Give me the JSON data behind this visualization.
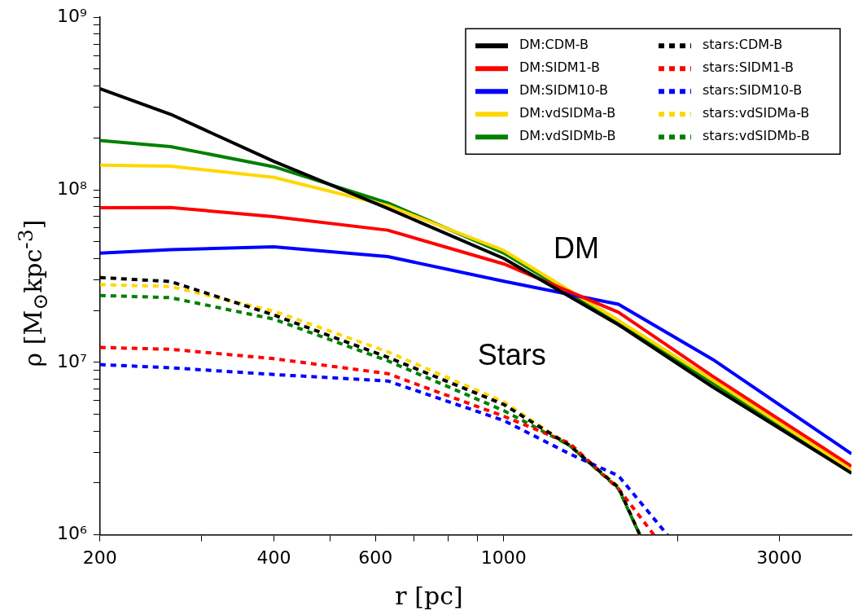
{
  "chart_data": {
    "type": "line",
    "xlabel": "r [pc]",
    "ylabel": "ρ [M$_{⊙}$kpc$^{-3}$]",
    "log": "xy",
    "xlim": [
      200,
      4000
    ],
    "ylim": [
      1000000,
      1000000000
    ],
    "xticks": [
      200,
      {
        "value": 300,
        "label": null
      },
      400,
      {
        "value": 500,
        "label": null
      },
      600,
      {
        "value": 700,
        "label": null
      },
      {
        "value": 800,
        "label": null
      },
      {
        "value": 900,
        "label": null
      },
      1000,
      {
        "value": 2000,
        "label": null
      },
      3000
    ],
    "yticks": [
      {
        "value": 1000000,
        "label": "10⁶"
      },
      {
        "value": 2000000,
        "label": null
      },
      {
        "value": 3000000,
        "label": null
      },
      {
        "value": 4000000,
        "label": null
      },
      {
        "value": 5000000,
        "label": null
      },
      {
        "value": 6000000,
        "label": null
      },
      {
        "value": 7000000,
        "label": null
      },
      {
        "value": 8000000,
        "label": null
      },
      {
        "value": 9000000,
        "label": null
      },
      {
        "value": 10000000,
        "label": "10⁷"
      },
      {
        "value": 20000000,
        "label": null
      },
      {
        "value": 30000000,
        "label": null
      },
      {
        "value": 40000000,
        "label": null
      },
      {
        "value": 50000000,
        "label": null
      },
      {
        "value": 60000000,
        "label": null
      },
      {
        "value": 70000000,
        "label": null
      },
      {
        "value": 80000000,
        "label": null
      },
      {
        "value": 90000000,
        "label": null
      },
      {
        "value": 100000000,
        "label": "10⁸"
      },
      {
        "value": 200000000,
        "label": null
      },
      {
        "value": 300000000,
        "label": null
      },
      {
        "value": 400000000,
        "label": null
      },
      {
        "value": 500000000,
        "label": null
      },
      {
        "value": 600000000,
        "label": null
      },
      {
        "value": 700000000,
        "label": null
      },
      {
        "value": 800000000,
        "label": null
      },
      {
        "value": 900000000,
        "label": null
      },
      {
        "value": 1000000000,
        "label": "10⁹"
      }
    ],
    "grid": false,
    "legend": "top right",
    "marker": "none",
    "x": [
      200,
      265,
      400,
      630,
      1000,
      1580,
      2300,
      4000
    ],
    "series": [
      {
        "name": "DM:CDM-B",
        "color": "#000000",
        "line_style": "solid",
        "values": [
          386000000,
          274000000,
          146000000,
          78000000,
          40000000,
          16500000,
          7200000,
          2280000
        ]
      },
      {
        "name": "DM:SIDM1-B",
        "color": "#ff0000",
        "line_style": "solid",
        "values": [
          78700000,
          79000000,
          69800000,
          58300000,
          37200000,
          19500000,
          8300000,
          2500000
        ]
      },
      {
        "name": "DM:SIDM10-B",
        "color": "#0000ff",
        "line_style": "solid",
        "values": [
          43000000,
          45000000,
          46700000,
          41000000,
          29500000,
          21700000,
          10400000,
          2950000
        ]
      },
      {
        "name": "DM:vdSIDMa-B",
        "color": "#ffd700",
        "line_style": "solid",
        "values": [
          139000000,
          137000000,
          118000000,
          81000000,
          44500000,
          17500000,
          7900000,
          2380000
        ]
      },
      {
        "name": "DM:vdSIDMb-B",
        "color": "#008000",
        "line_style": "solid",
        "values": [
          193000000,
          178000000,
          136000000,
          84000000,
          43000000,
          17000000,
          7600000,
          2280000
        ]
      },
      {
        "name": "stars:CDM-B",
        "color": "#000000",
        "line_style": "dashed",
        "x": [
          200,
          265,
          400,
          630,
          1000,
          1300,
          1580,
          1720
        ],
        "values": [
          31000000,
          29400000,
          18800000,
          10700000,
          5700000,
          3300000,
          1880000,
          1000000
        ]
      },
      {
        "name": "stars:SIDM1-B",
        "color": "#ff0000",
        "line_style": "dashed",
        "x": [
          200,
          265,
          400,
          630,
          1000,
          1300,
          1580,
          1820
        ],
        "values": [
          12200000,
          11900000,
          10500000,
          8600000,
          4870000,
          3400000,
          1850000,
          1000000
        ]
      },
      {
        "name": "stars:SIDM10-B",
        "color": "#0000ff",
        "line_style": "dashed",
        "x": [
          200,
          265,
          400,
          630,
          1000,
          1300,
          1580,
          1920
        ],
        "values": [
          9700000,
          9300000,
          8500000,
          7800000,
          4600000,
          2950000,
          2200000,
          1000000
        ]
      },
      {
        "name": "stars:vdSIDMa-B",
        "color": "#ffd700",
        "line_style": "dashed",
        "x": [
          200,
          265,
          400,
          630,
          1000,
          1300,
          1580,
          1720
        ],
        "values": [
          28200000,
          27500000,
          19800000,
          11500000,
          5900000,
          3300000,
          1900000,
          1000000
        ]
      },
      {
        "name": "stars:vdSIDMb-B",
        "color": "#008000",
        "line_style": "dashed",
        "x": [
          200,
          265,
          400,
          630,
          1000,
          1300,
          1580,
          1720
        ],
        "values": [
          24400000,
          23700000,
          17800000,
          10200000,
          5250000,
          3300000,
          1850000,
          1000000
        ]
      }
    ],
    "annotations": [
      "DM",
      "Stars"
    ]
  }
}
